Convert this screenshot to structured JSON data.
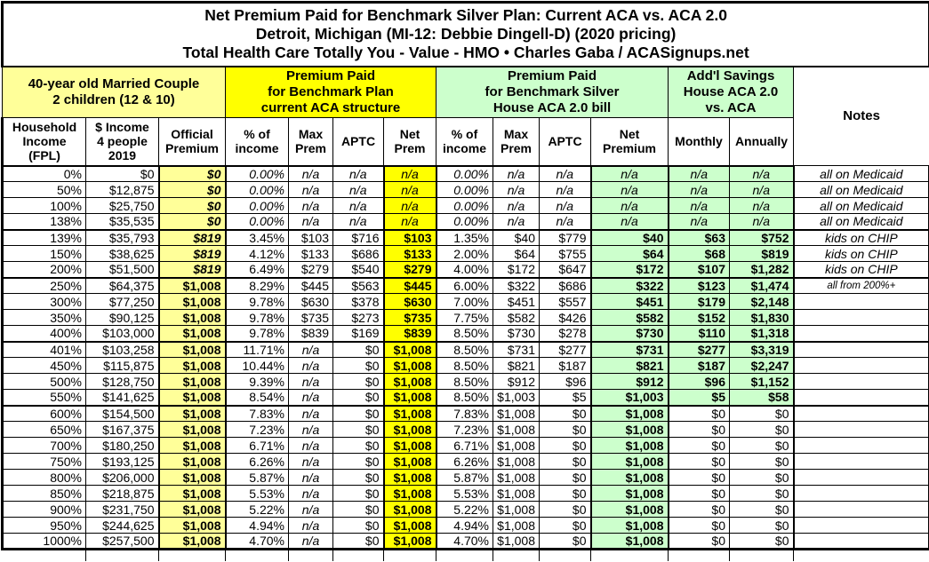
{
  "title": {
    "line1": "Net Premium Paid for Benchmark Silver Plan: Current ACA vs. ACA 2.0",
    "line2": "Detroit, Michigan (MI-12: Debbie Dingell-D) (2020 pricing)",
    "line3": "Total Health Care Totally You - Value - HMO • Charles Gaba / ACASignups.net"
  },
  "header_groups": {
    "household": "40-year old Married Couple\n2 children (12 & 10)",
    "current_aca": "Premium Paid\nfor Benchmark Plan\ncurrent ACA structure",
    "aca_2_0": "Premium Paid\nfor Benchmark Silver\nHouse ACA 2.0 bill",
    "savings": "Add'l Savings\nHouse ACA 2.0\nvs. ACA",
    "notes": "Notes"
  },
  "chart_data": {
    "type": "table",
    "columns": [
      "Household\nIncome\n(FPL)",
      "$ Income\n4 people\n2019",
      "Official\nPremium",
      "% of\nincome",
      "Max\nPrem",
      "APTC",
      "Net\nPrem",
      "% of\nincome",
      "Max\nPrem",
      "APTC",
      "Net\nPremium",
      "Monthly",
      "Annually",
      "Notes"
    ],
    "rows": [
      {
        "cells": [
          "0%",
          "$0",
          "$0",
          "0.00%",
          "n/a",
          "n/a",
          "n/a",
          "0.00%",
          "n/a",
          "n/a",
          "n/a",
          "n/a",
          "n/a",
          "all on Medicaid"
        ],
        "official_italic": true,
        "pct_italic": true,
        "savings_plain": false,
        "note_small": false,
        "section_start": false
      },
      {
        "cells": [
          "50%",
          "$12,875",
          "$0",
          "0.00%",
          "n/a",
          "n/a",
          "n/a",
          "0.00%",
          "n/a",
          "n/a",
          "n/a",
          "n/a",
          "n/a",
          "all on Medicaid"
        ],
        "official_italic": true,
        "pct_italic": true,
        "savings_plain": false,
        "note_small": false,
        "section_start": false
      },
      {
        "cells": [
          "100%",
          "$25,750",
          "$0",
          "0.00%",
          "n/a",
          "n/a",
          "n/a",
          "0.00%",
          "n/a",
          "n/a",
          "n/a",
          "n/a",
          "n/a",
          "all on Medicaid"
        ],
        "official_italic": true,
        "pct_italic": true,
        "savings_plain": false,
        "note_small": false,
        "section_start": false
      },
      {
        "cells": [
          "138%",
          "$35,535",
          "$0",
          "0.00%",
          "n/a",
          "n/a",
          "n/a",
          "0.00%",
          "n/a",
          "n/a",
          "n/a",
          "n/a",
          "n/a",
          "all on Medicaid"
        ],
        "official_italic": true,
        "pct_italic": true,
        "savings_plain": false,
        "note_small": false,
        "section_start": false
      },
      {
        "cells": [
          "139%",
          "$35,793",
          "$819",
          "3.45%",
          "$103",
          "$716",
          "$103",
          "1.35%",
          "$40",
          "$779",
          "$40",
          "$63",
          "$752",
          "kids on CHIP"
        ],
        "official_italic": true,
        "pct_italic": false,
        "savings_plain": false,
        "note_small": false,
        "section_start": true
      },
      {
        "cells": [
          "150%",
          "$38,625",
          "$819",
          "4.12%",
          "$133",
          "$686",
          "$133",
          "2.00%",
          "$64",
          "$755",
          "$64",
          "$68",
          "$819",
          "kids on CHIP"
        ],
        "official_italic": true,
        "pct_italic": false,
        "savings_plain": false,
        "note_small": false,
        "section_start": false
      },
      {
        "cells": [
          "200%",
          "$51,500",
          "$819",
          "6.49%",
          "$279",
          "$540",
          "$279",
          "4.00%",
          "$172",
          "$647",
          "$172",
          "$107",
          "$1,282",
          "kids on CHIP"
        ],
        "official_italic": true,
        "pct_italic": false,
        "savings_plain": false,
        "note_small": false,
        "section_start": false
      },
      {
        "cells": [
          "250%",
          "$64,375",
          "$1,008",
          "8.29%",
          "$445",
          "$563",
          "$445",
          "6.00%",
          "$322",
          "$686",
          "$322",
          "$123",
          "$1,474",
          "all from 200%+"
        ],
        "official_italic": false,
        "pct_italic": false,
        "savings_plain": false,
        "note_small": true,
        "section_start": true
      },
      {
        "cells": [
          "300%",
          "$77,250",
          "$1,008",
          "9.78%",
          "$630",
          "$378",
          "$630",
          "7.00%",
          "$451",
          "$557",
          "$451",
          "$179",
          "$2,148",
          ""
        ],
        "official_italic": false,
        "pct_italic": false,
        "savings_plain": false,
        "note_small": false,
        "section_start": false
      },
      {
        "cells": [
          "350%",
          "$90,125",
          "$1,008",
          "9.78%",
          "$735",
          "$273",
          "$735",
          "7.75%",
          "$582",
          "$426",
          "$582",
          "$152",
          "$1,830",
          ""
        ],
        "official_italic": false,
        "pct_italic": false,
        "savings_plain": false,
        "note_small": false,
        "section_start": false
      },
      {
        "cells": [
          "400%",
          "$103,000",
          "$1,008",
          "9.78%",
          "$839",
          "$169",
          "$839",
          "8.50%",
          "$730",
          "$278",
          "$730",
          "$110",
          "$1,318",
          ""
        ],
        "official_italic": false,
        "pct_italic": false,
        "savings_plain": false,
        "note_small": false,
        "section_start": false
      },
      {
        "cells": [
          "401%",
          "$103,258",
          "$1,008",
          "11.71%",
          "n/a",
          "$0",
          "$1,008",
          "8.50%",
          "$731",
          "$277",
          "$731",
          "$277",
          "$3,319",
          ""
        ],
        "official_italic": false,
        "pct_italic": false,
        "savings_plain": false,
        "note_small": false,
        "section_start": true
      },
      {
        "cells": [
          "450%",
          "$115,875",
          "$1,008",
          "10.44%",
          "n/a",
          "$0",
          "$1,008",
          "8.50%",
          "$821",
          "$187",
          "$821",
          "$187",
          "$2,247",
          ""
        ],
        "official_italic": false,
        "pct_italic": false,
        "savings_plain": false,
        "note_small": false,
        "section_start": false
      },
      {
        "cells": [
          "500%",
          "$128,750",
          "$1,008",
          "9.39%",
          "n/a",
          "$0",
          "$1,008",
          "8.50%",
          "$912",
          "$96",
          "$912",
          "$96",
          "$1,152",
          ""
        ],
        "official_italic": false,
        "pct_italic": false,
        "savings_plain": false,
        "note_small": false,
        "section_start": false
      },
      {
        "cells": [
          "550%",
          "$141,625",
          "$1,008",
          "8.54%",
          "n/a",
          "$0",
          "$1,008",
          "8.50%",
          "$1,003",
          "$5",
          "$1,003",
          "$5",
          "$58",
          ""
        ],
        "official_italic": false,
        "pct_italic": false,
        "savings_plain": false,
        "note_small": false,
        "section_start": false
      },
      {
        "cells": [
          "600%",
          "$154,500",
          "$1,008",
          "7.83%",
          "n/a",
          "$0",
          "$1,008",
          "7.83%",
          "$1,008",
          "$0",
          "$1,008",
          "$0",
          "$0",
          ""
        ],
        "official_italic": false,
        "pct_italic": false,
        "savings_plain": true,
        "note_small": false,
        "section_start": true
      },
      {
        "cells": [
          "650%",
          "$167,375",
          "$1,008",
          "7.23%",
          "n/a",
          "$0",
          "$1,008",
          "7.23%",
          "$1,008",
          "$0",
          "$1,008",
          "$0",
          "$0",
          ""
        ],
        "official_italic": false,
        "pct_italic": false,
        "savings_plain": true,
        "note_small": false,
        "section_start": false
      },
      {
        "cells": [
          "700%",
          "$180,250",
          "$1,008",
          "6.71%",
          "n/a",
          "$0",
          "$1,008",
          "6.71%",
          "$1,008",
          "$0",
          "$1,008",
          "$0",
          "$0",
          ""
        ],
        "official_italic": false,
        "pct_italic": false,
        "savings_plain": true,
        "note_small": false,
        "section_start": false
      },
      {
        "cells": [
          "750%",
          "$193,125",
          "$1,008",
          "6.26%",
          "n/a",
          "$0",
          "$1,008",
          "6.26%",
          "$1,008",
          "$0",
          "$1,008",
          "$0",
          "$0",
          ""
        ],
        "official_italic": false,
        "pct_italic": false,
        "savings_plain": true,
        "note_small": false,
        "section_start": false
      },
      {
        "cells": [
          "800%",
          "$206,000",
          "$1,008",
          "5.87%",
          "n/a",
          "$0",
          "$1,008",
          "5.87%",
          "$1,008",
          "$0",
          "$1,008",
          "$0",
          "$0",
          ""
        ],
        "official_italic": false,
        "pct_italic": false,
        "savings_plain": true,
        "note_small": false,
        "section_start": false
      },
      {
        "cells": [
          "850%",
          "$218,875",
          "$1,008",
          "5.53%",
          "n/a",
          "$0",
          "$1,008",
          "5.53%",
          "$1,008",
          "$0",
          "$1,008",
          "$0",
          "$0",
          ""
        ],
        "official_italic": false,
        "pct_italic": false,
        "savings_plain": true,
        "note_small": false,
        "section_start": false
      },
      {
        "cells": [
          "900%",
          "$231,750",
          "$1,008",
          "5.22%",
          "n/a",
          "$0",
          "$1,008",
          "5.22%",
          "$1,008",
          "$0",
          "$1,008",
          "$0",
          "$0",
          ""
        ],
        "official_italic": false,
        "pct_italic": false,
        "savings_plain": true,
        "note_small": false,
        "section_start": false
      },
      {
        "cells": [
          "950%",
          "$244,625",
          "$1,008",
          "4.94%",
          "n/a",
          "$0",
          "$1,008",
          "4.94%",
          "$1,008",
          "$0",
          "$1,008",
          "$0",
          "$0",
          ""
        ],
        "official_italic": false,
        "pct_italic": false,
        "savings_plain": true,
        "note_small": false,
        "section_start": false
      },
      {
        "cells": [
          "1000%",
          "$257,500",
          "$1,008",
          "4.70%",
          "n/a",
          "$0",
          "$1,008",
          "4.70%",
          "$1,008",
          "$0",
          "$1,008",
          "$0",
          "$0",
          ""
        ],
        "official_italic": false,
        "pct_italic": false,
        "savings_plain": true,
        "note_small": false,
        "section_start": false
      }
    ]
  },
  "colors": {
    "pale_yellow": "#FFFF99",
    "bright_yellow": "#FFFF00",
    "pale_green": "#CCFFCC",
    "border": "#000000",
    "background": "#FFFFFF"
  }
}
